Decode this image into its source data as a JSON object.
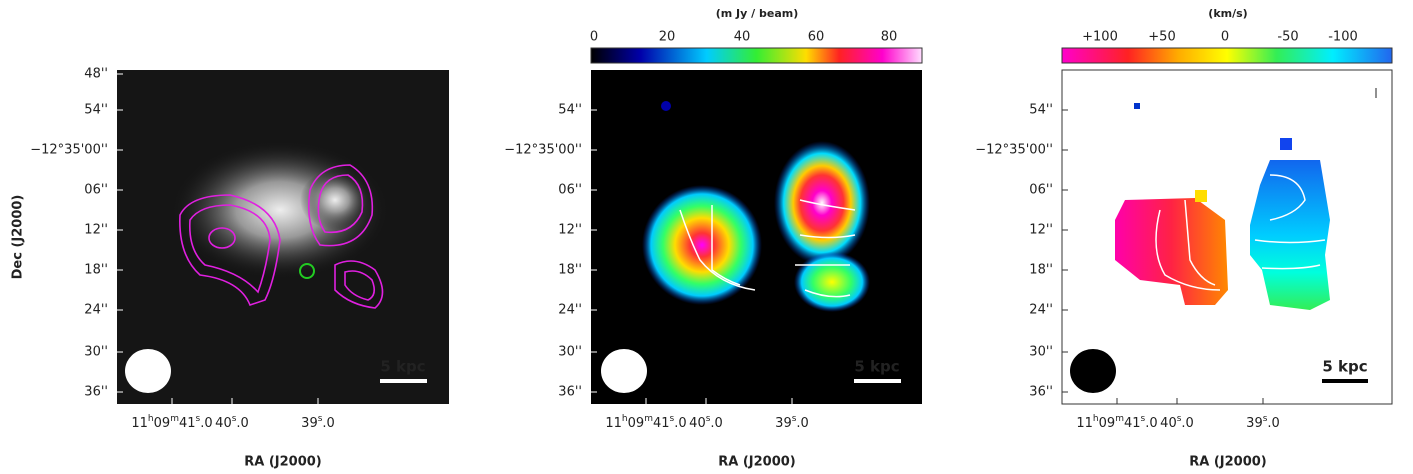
{
  "panels": [
    {
      "y_label": "Dec (J2000)",
      "y_ticks": [
        "48''",
        "54''",
        "−12°35'00''",
        "06''",
        "12''",
        "18''",
        "24''",
        "30''",
        "36''"
      ],
      "x_ticks": [
        [
          "11",
          "h",
          "09",
          "m",
          "41",
          "s",
          ".0"
        ],
        [
          "40",
          "s",
          ".0"
        ],
        [
          "39",
          "s",
          ".0"
        ]
      ],
      "x_label": "RA (J2000)",
      "scale_bar": "5 kpc"
    },
    {
      "colorbar_label": "(m Jy / beam)",
      "colorbar_ticks": [
        "0",
        "20",
        "40",
        "60",
        "80"
      ],
      "y_ticks": [
        "54''",
        "−12°35'00''",
        "06''",
        "12''",
        "18''",
        "24''",
        "30''",
        "36''"
      ],
      "x_ticks": [
        [
          "11",
          "h",
          "09",
          "m",
          "41",
          "s",
          ".0"
        ],
        [
          "40",
          "s",
          ".0"
        ],
        [
          "39",
          "s",
          ".0"
        ]
      ],
      "x_label": "RA (J2000)",
      "scale_bar": "5 kpc"
    },
    {
      "colorbar_label": "(km/s)",
      "colorbar_ticks": [
        "+100",
        "+50",
        "0",
        "-50",
        "-100"
      ],
      "y_ticks": [
        "54''",
        "−12°35'00''",
        "06''",
        "12''",
        "18''",
        "24''",
        "30''",
        "36''"
      ],
      "x_ticks": [
        [
          "11",
          "h",
          "09",
          "m",
          "41",
          "s",
          ".0"
        ],
        [
          "40",
          "s",
          ".0"
        ],
        [
          "39",
          "s",
          ".0"
        ]
      ],
      "x_label": "RA (J2000)",
      "scale_bar": "5 kpc"
    }
  ]
}
